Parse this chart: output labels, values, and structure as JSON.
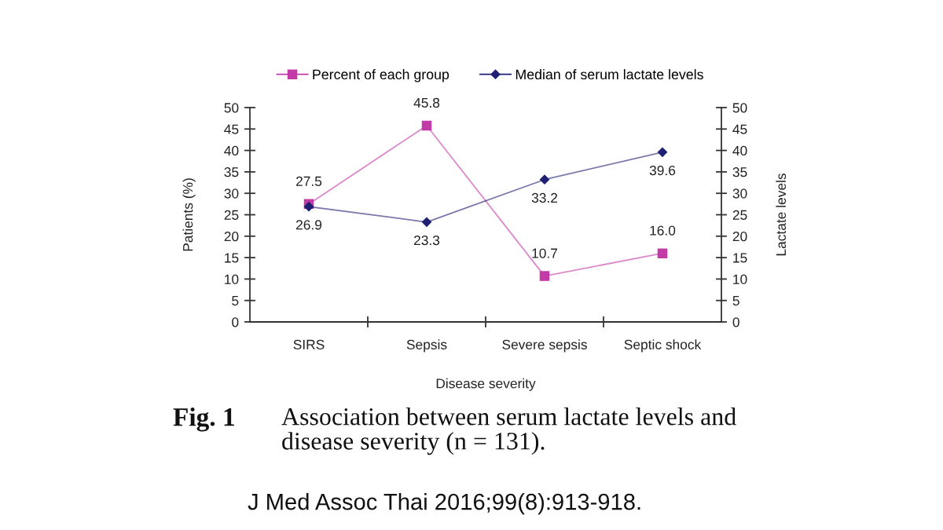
{
  "chart_data": {
    "type": "line",
    "xlabel": "Disease severity",
    "ylabel": "Patients (%)",
    "y2label": "Lactate levels",
    "categories": [
      "SIRS",
      "Sepsis",
      "Severe sepsis",
      "Septic shock"
    ],
    "series": [
      {
        "name": "Percent of each group",
        "color": "#c23ba6",
        "marker": "square",
        "values": [
          27.5,
          45.8,
          10.7,
          16.0
        ],
        "value_labels": [
          "27.5",
          "45.8",
          "10.7",
          "16.0"
        ]
      },
      {
        "name": "Median of serum lactate levels",
        "color": "#1f1f73",
        "marker": "diamond",
        "axis": "y2",
        "values": [
          26.9,
          23.3,
          33.2,
          39.6
        ],
        "value_labels": [
          "26.9",
          "23.3",
          "33.2",
          "39.6"
        ]
      }
    ],
    "ylim": [
      0,
      50
    ],
    "yticks": [
      0,
      5,
      10,
      15,
      20,
      25,
      30,
      35,
      40,
      45,
      50
    ],
    "y2lim": [
      0,
      50
    ],
    "y2ticks": [
      0,
      5,
      10,
      15,
      20,
      25,
      30,
      35,
      40,
      45,
      50
    ],
    "legend": "top",
    "line_style": "solid",
    "annotations": [
      "Fig. 1",
      "Association between serum lactate levels and disease severity (n = 131).",
      "J Med Assoc Thai 2016;99(8):913-918."
    ]
  }
}
